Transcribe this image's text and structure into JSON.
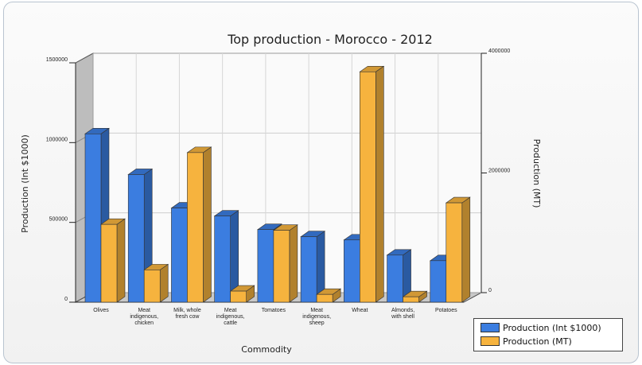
{
  "chart_data": {
    "type": "bar",
    "title": "Top production - Morocco - 2012",
    "xlabel": "Commodity",
    "ylabel": "Production (Int $1000)",
    "y2label": "Production (MT)",
    "categories": [
      [
        "Olives"
      ],
      [
        "Meat",
        "indigenous,",
        "chicken"
      ],
      [
        "Milk, whole",
        "fresh cow"
      ],
      [
        "Meat",
        "indigenous,",
        "cattle"
      ],
      [
        "Tomatoes"
      ],
      [
        "Meat",
        "indigenous,",
        "sheep"
      ],
      [
        "Wheat"
      ],
      [
        "Almonds,",
        "with shell"
      ],
      [
        "Potatoes"
      ]
    ],
    "series": [
      {
        "name": "Production (Int $1000)",
        "axis": "left",
        "color": "#3b7de0",
        "values": [
          1055000,
          800000,
          590000,
          540000,
          455000,
          410000,
          390000,
          295000,
          260000
        ]
      },
      {
        "name": "Production (MT)",
        "axis": "right",
        "color": "#f6b33e",
        "values": [
          1300000,
          540000,
          2500000,
          185000,
          1200000,
          130000,
          3850000,
          90000,
          1660000
        ]
      }
    ],
    "ylim": [
      0,
      1500000
    ],
    "y2lim": [
      0,
      4000000
    ],
    "yticks": [
      0,
      500000,
      1000000,
      1500000
    ],
    "y2ticks": [
      0,
      2000000,
      4000000
    ],
    "grid": true,
    "legend": "bottom-right"
  }
}
